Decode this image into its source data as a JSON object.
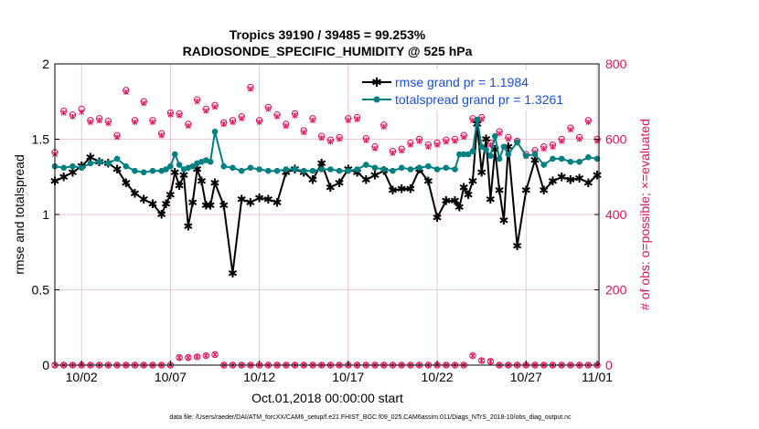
{
  "chart_data": {
    "type": "line",
    "title": "Tropics 39190 / 39485 = 99.253%",
    "subtitle": "RADIOSONDE_SPECIFIC_HUMIDITY @ 525 hPa",
    "xlabel": "Oct.01,2018 00:00:00 start",
    "ylabel": "rmse and totalspread",
    "ylabel_right": "# of obs: o=possible; ×=evaluated",
    "footnote": "data file: /Users/raeder/DAI/ATM_forcXX/CAM6_setup/f.e21.FHIST_BGC.f09_025.CAM6assim.011/Diags_NTrS_2018-10/obs_diag_output.nc",
    "xlim": [
      0.5,
      31.1
    ],
    "ylim": [
      0,
      2
    ],
    "ylim_right": [
      0,
      800
    ],
    "x_ticks": [
      {
        "value": 2,
        "label": "10/02"
      },
      {
        "value": 7,
        "label": "10/07"
      },
      {
        "value": 12,
        "label": "10/12"
      },
      {
        "value": 17,
        "label": "10/17"
      },
      {
        "value": 22,
        "label": "10/22"
      },
      {
        "value": 27,
        "label": "10/27"
      },
      {
        "value": 31,
        "label": "11/01"
      }
    ],
    "y_ticks": [
      {
        "value": 0,
        "label": "0"
      },
      {
        "value": 0.5,
        "label": "0.5"
      },
      {
        "value": 1,
        "label": "1"
      },
      {
        "value": 1.5,
        "label": "1.5"
      },
      {
        "value": 2,
        "label": "2"
      }
    ],
    "y_ticks_right": [
      {
        "value": 0,
        "label": "0"
      },
      {
        "value": 200,
        "label": "200"
      },
      {
        "value": 400,
        "label": "400"
      },
      {
        "value": 600,
        "label": "600"
      },
      {
        "value": 800,
        "label": "800"
      }
    ],
    "colors": {
      "rmse": "#000000",
      "spread": "#008080",
      "obs": "#e0105a",
      "grid": "#e6b8cc",
      "legend_text": "#1a4fd6"
    },
    "series": [
      {
        "name": "rmse grand pr = 1.1984",
        "key": "rmse",
        "x": [
          0.5,
          1,
          1.5,
          2,
          2.5,
          3,
          3.5,
          4,
          4.5,
          5,
          5.5,
          6,
          6.5,
          6.75,
          7,
          7.25,
          7.5,
          7.75,
          8,
          8.25,
          8.5,
          8.75,
          9,
          9.25,
          9.5,
          10,
          10.5,
          11,
          11.5,
          12,
          12.5,
          13,
          13.5,
          14,
          14.5,
          15,
          15.5,
          16,
          16.5,
          17,
          17.5,
          18,
          18.5,
          19,
          19.5,
          20,
          20.5,
          21,
          21.5,
          22,
          22.5,
          23,
          23.25,
          23.5,
          23.75,
          24,
          24.25,
          24.5,
          24.75,
          25,
          25.25,
          25.5,
          25.75,
          26,
          26.5,
          27,
          27.5,
          28,
          28.5,
          29,
          29.5,
          30,
          30.5,
          31
        ],
        "values": [
          1.22,
          1.25,
          1.28,
          1.32,
          1.38,
          1.35,
          1.34,
          1.3,
          1.21,
          1.14,
          1.1,
          1.07,
          1.0,
          1.07,
          1.13,
          1.28,
          1.19,
          1.26,
          0.92,
          1.08,
          1.3,
          1.22,
          1.06,
          1.06,
          1.21,
          1.06,
          0.61,
          1.1,
          1.08,
          1.11,
          1.1,
          1.08,
          1.28,
          1.3,
          1.28,
          1.23,
          1.34,
          1.18,
          1.21,
          1.3,
          1.28,
          1.23,
          1.26,
          1.29,
          1.16,
          1.17,
          1.17,
          1.3,
          1.22,
          0.98,
          1.09,
          1.09,
          1.05,
          1.18,
          1.13,
          1.22,
          1.6,
          1.28,
          1.5,
          1.1,
          1.43,
          1.16,
          0.96,
          1.45,
          0.79,
          1.16,
          1.36,
          1.16,
          1.22,
          1.25,
          1.23,
          1.24,
          1.21,
          1.26
        ]
      },
      {
        "name": "totalspread grand pr = 1.3261",
        "key": "spread",
        "x": [
          0.5,
          1,
          1.5,
          2,
          2.5,
          3,
          3.5,
          4,
          4.5,
          5,
          5.5,
          6,
          6.5,
          6.75,
          7,
          7.25,
          7.5,
          7.75,
          8,
          8.25,
          8.5,
          8.75,
          9,
          9.25,
          9.5,
          10,
          10.5,
          11,
          11.5,
          12,
          12.5,
          13,
          13.5,
          14,
          14.5,
          15,
          15.5,
          16,
          16.5,
          17,
          17.5,
          18,
          18.5,
          19,
          19.5,
          20,
          20.5,
          21,
          21.5,
          22,
          22.5,
          23,
          23.25,
          23.5,
          23.75,
          24,
          24.25,
          24.5,
          24.75,
          25,
          25.25,
          25.5,
          25.75,
          26,
          26.5,
          27,
          27.5,
          28,
          28.5,
          29,
          29.5,
          30,
          30.5,
          31
        ],
        "values": [
          1.32,
          1.31,
          1.32,
          1.31,
          1.34,
          1.35,
          1.34,
          1.37,
          1.32,
          1.29,
          1.28,
          1.29,
          1.29,
          1.3,
          1.32,
          1.4,
          1.33,
          1.3,
          1.31,
          1.32,
          1.34,
          1.35,
          1.36,
          1.35,
          1.55,
          1.32,
          1.31,
          1.29,
          1.31,
          1.3,
          1.29,
          1.29,
          1.3,
          1.3,
          1.29,
          1.29,
          1.3,
          1.3,
          1.29,
          1.29,
          1.3,
          1.33,
          1.31,
          1.3,
          1.29,
          1.31,
          1.3,
          1.31,
          1.32,
          1.3,
          1.31,
          1.3,
          1.4,
          1.4,
          1.4,
          1.42,
          1.63,
          1.45,
          1.43,
          1.39,
          1.52,
          1.37,
          1.45,
          1.4,
          1.48,
          1.39,
          1.4,
          1.33,
          1.37,
          1.37,
          1.35,
          1.35,
          1.38,
          1.37
        ]
      },
      {
        "name": "obs possible",
        "key": "obs_possible",
        "axis": "right",
        "marker": "circle",
        "x": [
          0.5,
          1,
          1.5,
          2,
          2.5,
          3,
          3.5,
          4,
          4.5,
          5,
          5.5,
          6,
          6.5,
          7,
          7.5,
          8,
          8.5,
          9,
          9.5,
          10,
          10.5,
          11,
          11.5,
          12,
          12.5,
          13,
          13.5,
          14,
          14.5,
          15,
          15.5,
          16,
          16.5,
          17,
          17.5,
          18,
          18.5,
          19,
          19.5,
          20,
          20.5,
          21,
          21.5,
          22,
          22.5,
          23,
          23.5,
          24,
          24.5,
          25,
          25.5,
          26,
          26.5,
          27,
          27.5,
          28,
          28.5,
          29,
          29.5,
          30,
          30.5,
          31
        ],
        "values": [
          565,
          675,
          665,
          680,
          650,
          655,
          648,
          610,
          730,
          650,
          700,
          650,
          615,
          670,
          668,
          640,
          705,
          680,
          690,
          644,
          650,
          660,
          738,
          650,
          685,
          665,
          640,
          668,
          623,
          655,
          608,
          598,
          605,
          655,
          658,
          602,
          580,
          638,
          568,
          574,
          590,
          600,
          585,
          590,
          598,
          600,
          610,
          655,
          658,
          590,
          620,
          605,
          595,
          560,
          570,
          580,
          585,
          600,
          630,
          605,
          650,
          600
        ],
        "values_low": [
          0,
          0,
          0,
          0,
          0,
          0,
          0,
          0,
          0,
          0,
          0,
          0,
          0,
          0,
          20,
          20,
          22,
          25,
          28,
          0,
          0,
          0,
          0,
          0,
          0,
          0,
          0,
          0,
          0,
          0,
          0,
          0,
          0,
          0,
          0,
          0,
          0,
          0,
          0,
          0,
          0,
          0,
          0,
          0,
          0,
          0,
          0,
          25,
          12,
          10,
          0,
          0,
          0,
          0,
          0,
          0,
          0,
          0,
          0,
          0,
          0,
          0
        ]
      },
      {
        "name": "obs evaluated",
        "key": "obs_evaluated",
        "axis": "right",
        "marker": "x",
        "x": [
          0.5,
          1,
          1.5,
          2,
          2.5,
          3,
          3.5,
          4,
          4.5,
          5,
          5.5,
          6,
          6.5,
          7,
          7.5,
          8,
          8.5,
          9,
          9.5,
          10,
          10.5,
          11,
          11.5,
          12,
          12.5,
          13,
          13.5,
          14,
          14.5,
          15,
          15.5,
          16,
          16.5,
          17,
          17.5,
          18,
          18.5,
          19,
          19.5,
          20,
          20.5,
          21,
          21.5,
          22,
          22.5,
          23,
          23.5,
          24,
          24.5,
          25,
          25.5,
          26,
          26.5,
          27,
          27.5,
          28,
          28.5,
          29,
          29.5,
          30,
          30.5,
          31
        ],
        "values": [
          560,
          670,
          660,
          672,
          645,
          650,
          642,
          605,
          725,
          645,
          695,
          645,
          610,
          665,
          663,
          635,
          700,
          675,
          685,
          640,
          645,
          655,
          733,
          645,
          680,
          660,
          635,
          663,
          618,
          650,
          603,
          593,
          600,
          650,
          653,
          597,
          575,
          633,
          563,
          569,
          585,
          595,
          580,
          585,
          593,
          595,
          605,
          650,
          653,
          585,
          615,
          600,
          590,
          555,
          565,
          575,
          580,
          595,
          625,
          600,
          645,
          595
        ],
        "values_low": [
          0,
          0,
          0,
          0,
          0,
          0,
          0,
          0,
          0,
          0,
          0,
          0,
          0,
          0,
          20,
          20,
          22,
          25,
          28,
          0,
          0,
          0,
          0,
          0,
          0,
          0,
          0,
          0,
          0,
          0,
          0,
          0,
          0,
          0,
          0,
          0,
          0,
          0,
          0,
          0,
          0,
          0,
          0,
          0,
          0,
          0,
          0,
          25,
          12,
          10,
          0,
          0,
          0,
          0,
          0,
          0,
          0,
          0,
          0,
          0,
          0,
          0
        ]
      }
    ]
  }
}
